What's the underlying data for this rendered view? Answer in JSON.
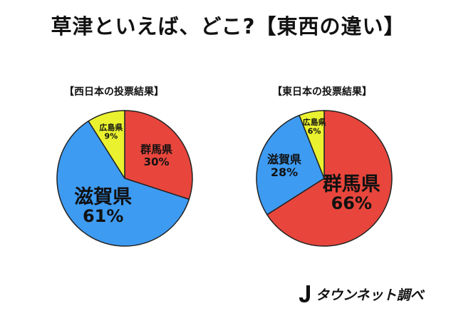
{
  "title": "草津といえば、どこ?【東西の違い】",
  "credit": "タウンネット調べ",
  "colors": {
    "群馬県": "#e8463c",
    "滋賀県": "#3e9bf2",
    "広島県": "#eaf230"
  },
  "chart_data": [
    {
      "type": "pie",
      "title": "【西日本の投票結果】",
      "slices": [
        {
          "label": "群馬県",
          "value": 30
        },
        {
          "label": "滋賀県",
          "value": 61
        },
        {
          "label": "広島県",
          "value": 9
        }
      ]
    },
    {
      "type": "pie",
      "title": "【東日本の投票結果】",
      "slices": [
        {
          "label": "群馬県",
          "value": 66
        },
        {
          "label": "滋賀県",
          "value": 28
        },
        {
          "label": "広島県",
          "value": 6
        }
      ]
    }
  ]
}
